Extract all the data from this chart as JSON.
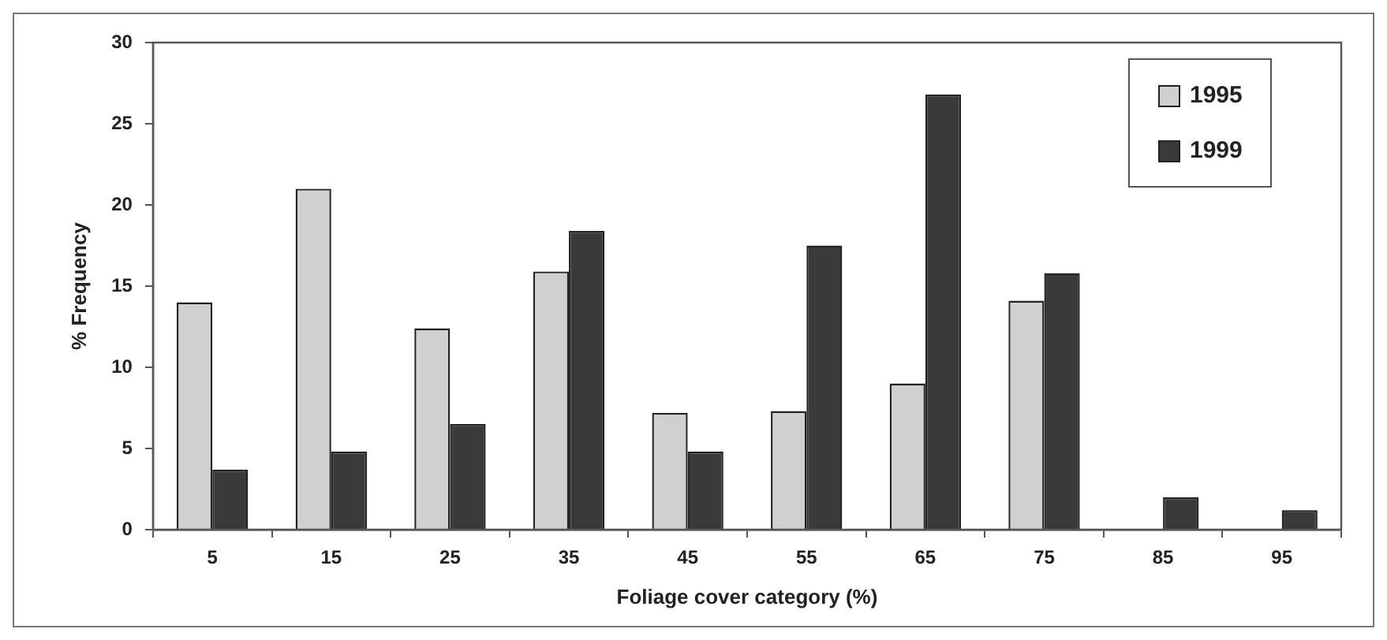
{
  "chart_data": {
    "type": "bar",
    "xlabel": "Foliage cover category (%)",
    "ylabel": "% Frequency",
    "categories": [
      "5",
      "15",
      "25",
      "35",
      "45",
      "55",
      "65",
      "75",
      "85",
      "95"
    ],
    "series": [
      {
        "name": "1995",
        "color": "#d0d0d0",
        "values": [
          14,
          21,
          12.4,
          15.9,
          7.2,
          7.3,
          9,
          14.1,
          0,
          0
        ]
      },
      {
        "name": "1999",
        "color": "#3a3a3a",
        "values": [
          3.7,
          4.8,
          6.5,
          18.4,
          4.8,
          17.5,
          26.8,
          15.8,
          2,
          1.2
        ]
      }
    ],
    "ylim": [
      0,
      30
    ],
    "yticks": [
      0,
      5,
      10,
      15,
      20,
      25,
      30
    ],
    "grid": false,
    "legend": "top right"
  }
}
